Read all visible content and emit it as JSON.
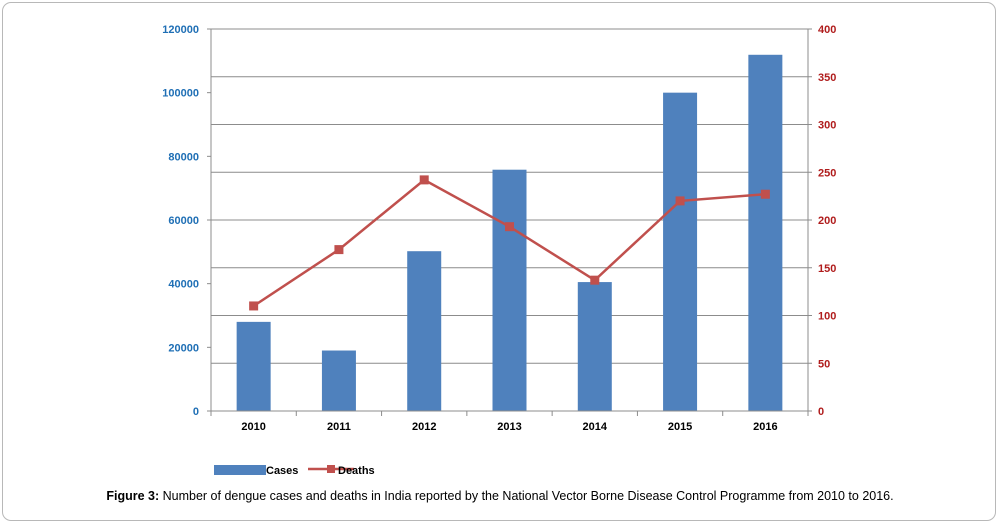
{
  "chart_data": {
    "type": "bar+line",
    "categories": [
      "2010",
      "2011",
      "2012",
      "2013",
      "2014",
      "2015",
      "2016"
    ],
    "series": [
      {
        "name": "Cases",
        "type": "bar",
        "axis": "left",
        "color": "#4f81bd",
        "values": [
          28000,
          19000,
          50200,
          75800,
          40500,
          100000,
          111900
        ]
      },
      {
        "name": "Deaths",
        "type": "line",
        "axis": "right",
        "color": "#c0504d",
        "values": [
          110,
          169,
          242,
          193,
          137,
          220,
          227
        ]
      }
    ],
    "y_left": {
      "min": 0,
      "max": 120000,
      "ticks": [
        "0",
        "20000",
        "40000",
        "60000",
        "80000",
        "100000",
        "120000"
      ],
      "color": "#1f6fb5"
    },
    "y_right": {
      "min": 0,
      "max": 400,
      "ticks": [
        "0",
        "50",
        "100",
        "150",
        "200",
        "250",
        "300",
        "350",
        "400"
      ],
      "color": "#b01c1c"
    },
    "grid": "horizontal (right axis)",
    "legend_position": "bottom-left"
  },
  "caption": {
    "label": "Figure 3:",
    "text": " Number of dengue cases and deaths in India reported by the National Vector Borne Disease Control Programme from 2010 to 2016."
  }
}
